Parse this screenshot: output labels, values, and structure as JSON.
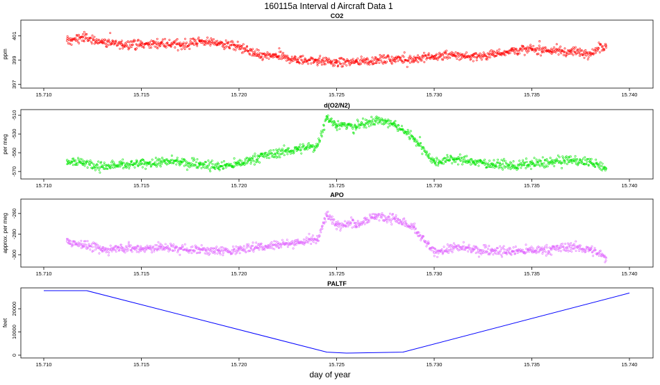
{
  "main_title": "160115a   Interval d Aircraft Data 1",
  "xlabel": "day of year",
  "chart_data": [
    {
      "type": "scatter",
      "title": "CO2",
      "ylabel": "ppm",
      "color": "#ff0000",
      "xlim": [
        15.7095,
        15.7405
      ],
      "ylim": [
        396.7,
        402.3
      ],
      "xticks": [
        15.71,
        15.715,
        15.72,
        15.725,
        15.73,
        15.735,
        15.74
      ],
      "xtick_labels": [
        "15.710",
        "15.715",
        "15.720",
        "15.725",
        "15.730",
        "15.735",
        "15.740"
      ],
      "yticks": [
        397,
        399,
        401
      ],
      "ytick_labels": [
        "397",
        "399",
        "401"
      ],
      "series": [
        {
          "name": "CO2",
          "x": [
            15.7112,
            15.712,
            15.713,
            15.714,
            15.715,
            15.716,
            15.717,
            15.718,
            15.719,
            15.72,
            15.721,
            15.722,
            15.723,
            15.724,
            15.725,
            15.726,
            15.727,
            15.728,
            15.729,
            15.73,
            15.731,
            15.732,
            15.733,
            15.734,
            15.735,
            15.736,
            15.737,
            15.738,
            15.7388
          ],
          "y": [
            400.6,
            400.9,
            400.5,
            400.3,
            400.3,
            400.4,
            400.2,
            400.6,
            400.4,
            400.1,
            399.4,
            399.3,
            399.0,
            399.0,
            398.8,
            398.9,
            399.0,
            399.1,
            399.1,
            399.3,
            399.4,
            399.3,
            399.5,
            399.8,
            399.9,
            399.8,
            399.7,
            399.6,
            400.2
          ]
        }
      ]
    },
    {
      "type": "scatter",
      "title": "d(O2/N2)",
      "ylabel": "per meg",
      "color": "#00e600",
      "xlim": [
        15.7095,
        15.7405
      ],
      "ylim": [
        -578,
        -504
      ],
      "xticks": [
        15.71,
        15.715,
        15.72,
        15.725,
        15.73,
        15.735,
        15.74
      ],
      "xtick_labels": [
        "15.710",
        "15.715",
        "15.720",
        "15.725",
        "15.730",
        "15.735",
        "15.740"
      ],
      "yticks": [
        -570,
        -550,
        -530,
        -510
      ],
      "ytick_labels": [
        "-570",
        "-550",
        "-530",
        "-510"
      ],
      "series": [
        {
          "name": "d(O2/N2)",
          "x": [
            15.7112,
            15.712,
            15.713,
            15.714,
            15.715,
            15.716,
            15.717,
            15.718,
            15.719,
            15.72,
            15.721,
            15.722,
            15.723,
            15.724,
            15.7245,
            15.725,
            15.726,
            15.727,
            15.728,
            15.729,
            15.73,
            15.731,
            15.732,
            15.733,
            15.734,
            15.735,
            15.736,
            15.737,
            15.738,
            15.7388
          ],
          "y": [
            -558,
            -560,
            -565,
            -563,
            -562,
            -560,
            -560,
            -562,
            -565,
            -562,
            -555,
            -550,
            -546,
            -543,
            -512,
            -520,
            -522,
            -515,
            -520,
            -535,
            -560,
            -556,
            -560,
            -562,
            -564,
            -562,
            -560,
            -558,
            -560,
            -567
          ]
        }
      ]
    },
    {
      "type": "scatter",
      "title": "APO",
      "ylabel": "approx. per meg",
      "color": "#e066ff",
      "xlim": [
        15.7095,
        15.7405
      ],
      "ylim": [
        -312,
        -246
      ],
      "xticks": [
        15.71,
        15.715,
        15.72,
        15.725,
        15.73,
        15.735,
        15.74
      ],
      "xtick_labels": [
        "15.710",
        "15.715",
        "15.720",
        "15.725",
        "15.730",
        "15.735",
        "15.740"
      ],
      "yticks": [
        -300,
        -280,
        -260
      ],
      "ytick_labels": [
        "-300",
        "-280",
        "-260"
      ],
      "series": [
        {
          "name": "APO",
          "x": [
            15.7112,
            15.712,
            15.713,
            15.714,
            15.715,
            15.716,
            15.717,
            15.718,
            15.719,
            15.72,
            15.721,
            15.722,
            15.723,
            15.724,
            15.7245,
            15.725,
            15.726,
            15.727,
            15.728,
            15.729,
            15.73,
            15.731,
            15.732,
            15.733,
            15.734,
            15.735,
            15.736,
            15.737,
            15.738,
            15.7388
          ],
          "y": [
            -287,
            -290,
            -295,
            -293,
            -294,
            -293,
            -294,
            -295,
            -297,
            -295,
            -292,
            -290,
            -288,
            -285,
            -262,
            -270,
            -270,
            -262,
            -265,
            -275,
            -298,
            -293,
            -295,
            -296,
            -297,
            -296,
            -295,
            -292,
            -295,
            -303
          ]
        }
      ]
    },
    {
      "type": "line",
      "title": "PALTF",
      "ylabel": "feet",
      "color": "#0000ff",
      "xlim": [
        15.7095,
        15.7405
      ],
      "ylim": [
        -1200,
        29000
      ],
      "xticks": [
        15.71,
        15.715,
        15.72,
        15.725,
        15.73,
        15.735,
        15.74
      ],
      "xtick_labels": [
        "15.710",
        "15.715",
        "15.720",
        "15.725",
        "15.730",
        "15.735",
        "15.740"
      ],
      "yticks": [
        0,
        10000,
        20000
      ],
      "ytick_labels": [
        "0",
        "10000",
        "20000"
      ],
      "series": [
        {
          "name": "PALTF",
          "x": [
            15.71,
            15.7122,
            15.7245,
            15.7255,
            15.7284,
            15.74
          ],
          "y": [
            27800,
            27800,
            1300,
            900,
            1300,
            26800
          ]
        }
      ]
    }
  ]
}
